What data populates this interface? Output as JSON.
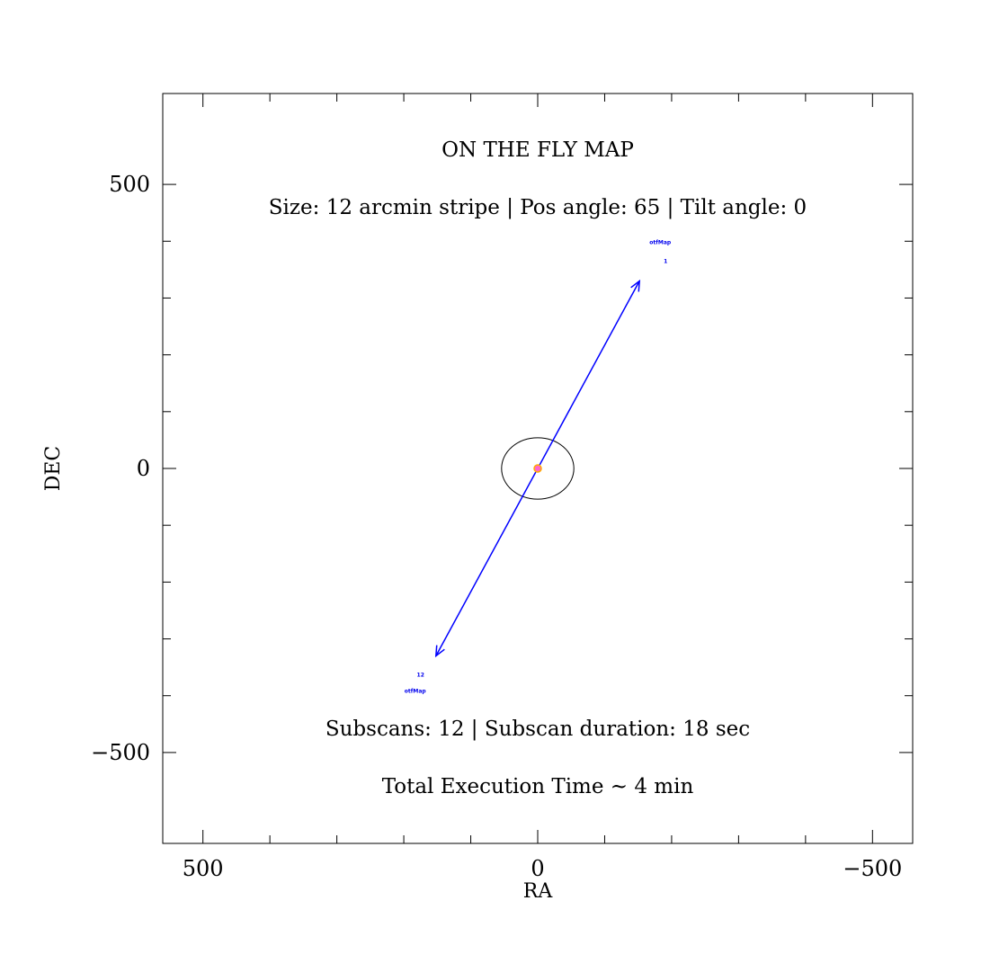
{
  "chart_data": {
    "type": "scatter",
    "title": "ON THE FLY MAP",
    "xlabel": "RA",
    "ylabel": "DEC",
    "xlim": [
      560,
      -560
    ],
    "ylim": [
      -660,
      660
    ],
    "x_ticks": [
      500,
      0,
      -500
    ],
    "y_ticks": [
      500,
      0,
      -500
    ],
    "x_tick_labels": [
      "500",
      "0",
      "−500"
    ],
    "y_tick_labels": [
      "500",
      "0",
      "−500"
    ],
    "annotations": {
      "size_line": "Size: 12 arcmin stripe | Pos angle: 65 | Tilt angle: 0",
      "subscan_line": "Subscans: 12 | Subscan duration: 18 sec",
      "time_line": "Total Execution Time ~ 4 min"
    },
    "scan": {
      "start": [
        152,
        -330
      ],
      "end": [
        -152,
        330
      ],
      "color": "#0000ff"
    },
    "circle": {
      "center": [
        0,
        0
      ],
      "radius": 54
    },
    "center_marker": {
      "x": 0,
      "y": 0,
      "fill": "#ff66cc",
      "stroke": "#ffaa00"
    },
    "end_labels": [
      {
        "name": "otfMap",
        "number": "12",
        "x": 183,
        "y": -395
      },
      {
        "name": "otfMap",
        "number": "1",
        "x": -183,
        "y": 395
      }
    ]
  }
}
